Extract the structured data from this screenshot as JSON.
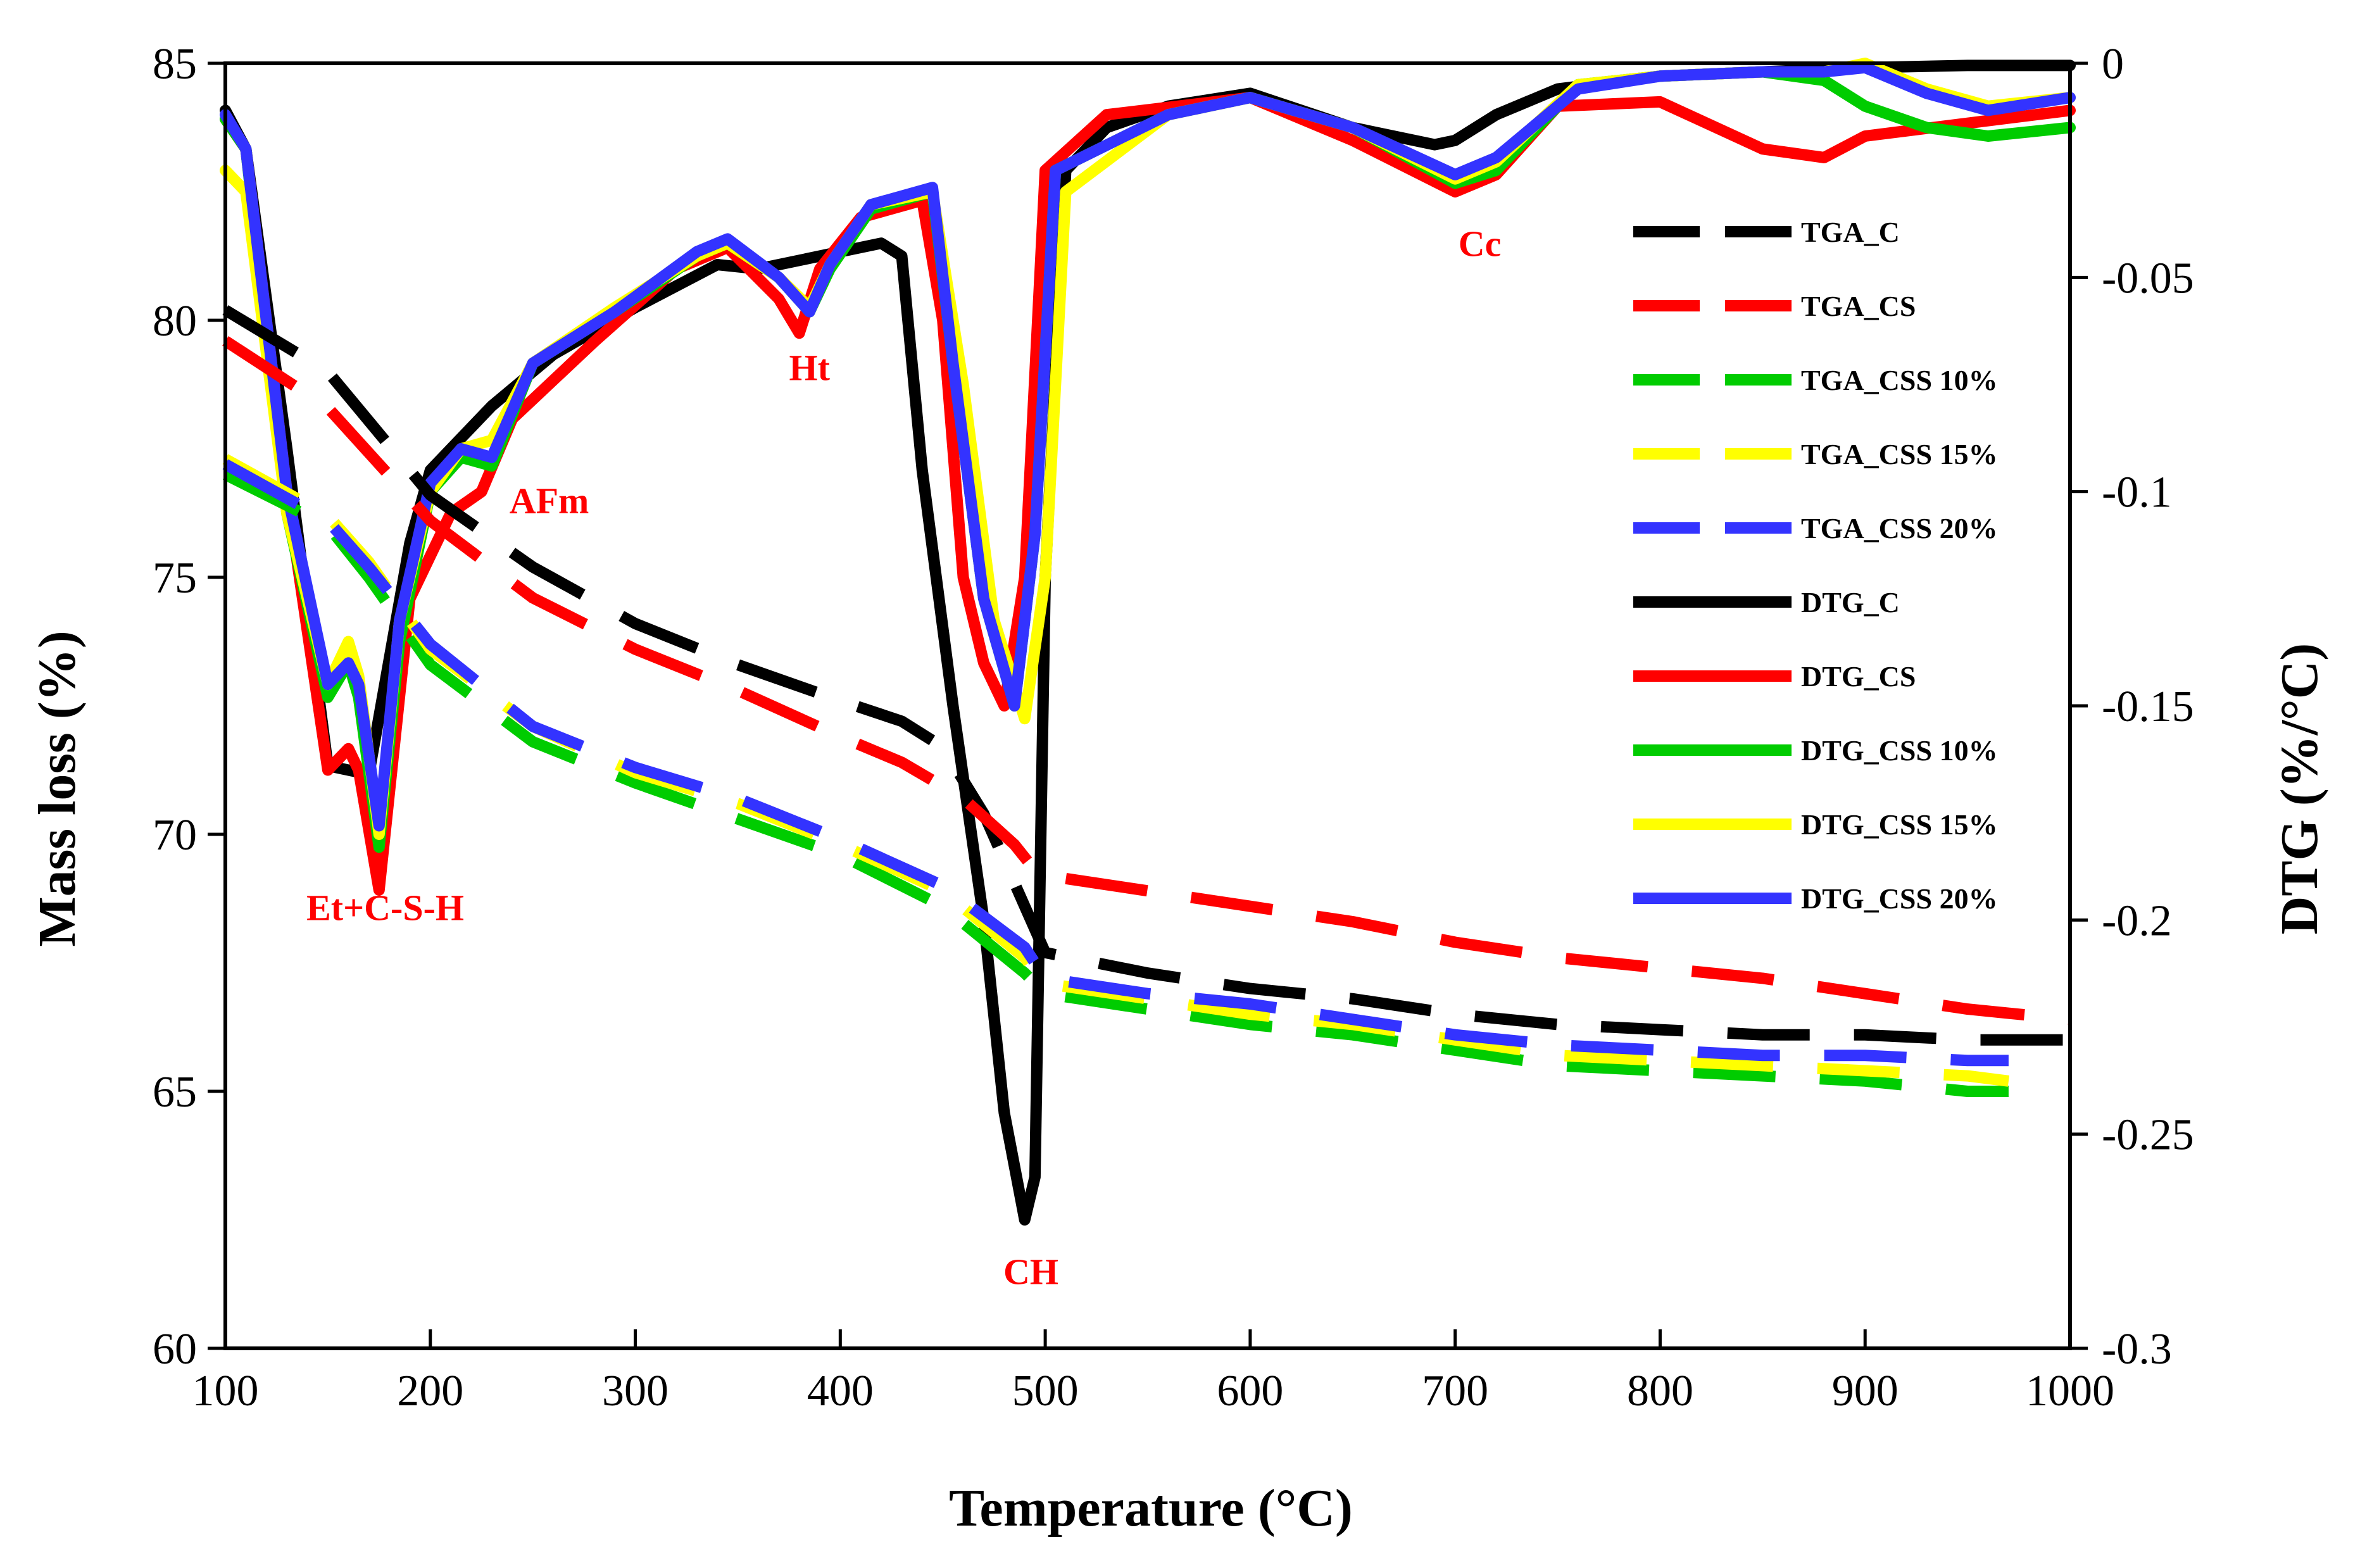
{
  "chart_data": {
    "type": "line",
    "title": "",
    "xlabel": "Temperature (°C)",
    "ylabel": "Mass loss (%)",
    "y2label": "DTG (%/°C)",
    "xlim": [
      100,
      1000
    ],
    "ylim": [
      60,
      85
    ],
    "y2lim": [
      -0.3,
      0
    ],
    "xticks": [
      100,
      200,
      300,
      400,
      500,
      600,
      700,
      800,
      900,
      1000
    ],
    "yticks": [
      60,
      65,
      70,
      75,
      80,
      85
    ],
    "y2ticks": [
      -0.3,
      -0.25,
      -0.2,
      -0.15,
      -0.1,
      -0.05,
      0
    ],
    "y2tick_labels": [
      "-0.3",
      "-0.25",
      "-0.2",
      "-0.15",
      "-0.1",
      "-0.05",
      "0"
    ],
    "grid": false,
    "legend_position": "right",
    "series": [
      {
        "name": "TGA_C",
        "axis": "left",
        "style": "dashed",
        "color": "#000000",
        "x": [
          100,
          150,
          200,
          250,
          300,
          350,
          400,
          430,
          450,
          470,
          490,
          500,
          550,
          600,
          650,
          700,
          750,
          800,
          850,
          900,
          950,
          1000
        ],
        "y": [
          80.2,
          79.0,
          76.6,
          75.2,
          74.1,
          73.3,
          72.6,
          72.2,
          71.7,
          70.4,
          68.6,
          67.7,
          67.3,
          67.0,
          66.8,
          66.5,
          66.3,
          66.2,
          66.1,
          66.1,
          66.0,
          66.0
        ]
      },
      {
        "name": "TGA_CS",
        "axis": "left",
        "style": "dashed",
        "color": "#ff0000",
        "x": [
          100,
          150,
          200,
          250,
          300,
          350,
          400,
          430,
          460,
          485,
          495,
          500,
          550,
          600,
          650,
          700,
          750,
          800,
          850,
          900,
          950,
          1000
        ],
        "y": [
          79.6,
          78.3,
          76.1,
          74.6,
          73.6,
          72.8,
          71.9,
          71.4,
          70.7,
          69.8,
          69.3,
          69.2,
          68.9,
          68.6,
          68.3,
          67.9,
          67.6,
          67.4,
          67.2,
          66.9,
          66.6,
          66.4
        ]
      },
      {
        "name": "TGA_CSS 10%",
        "axis": "left",
        "style": "dashed",
        "color": "#00cc00",
        "x": [
          100,
          150,
          170,
          200,
          250,
          300,
          350,
          400,
          450,
          490,
          500,
          550,
          600,
          650,
          700,
          750,
          800,
          850,
          900,
          950,
          970
        ],
        "y": [
          77.0,
          76.0,
          75.0,
          73.3,
          71.8,
          71.0,
          70.3,
          69.6,
          68.6,
          67.3,
          66.9,
          66.6,
          66.3,
          66.1,
          65.8,
          65.5,
          65.4,
          65.3,
          65.2,
          65.0,
          65.0
        ]
      },
      {
        "name": "TGA_CSS 15%",
        "axis": "left",
        "style": "dashed",
        "color": "#ffff00",
        "x": [
          100,
          150,
          170,
          200,
          250,
          300,
          350,
          400,
          450,
          490,
          500,
          550,
          600,
          650,
          700,
          750,
          800,
          850,
          900,
          950,
          970
        ],
        "y": [
          77.3,
          76.2,
          75.3,
          73.6,
          72.1,
          71.2,
          70.6,
          69.8,
          68.9,
          67.6,
          67.1,
          66.8,
          66.5,
          66.3,
          66.0,
          65.7,
          65.6,
          65.5,
          65.4,
          65.3,
          65.2
        ]
      },
      {
        "name": "TGA_CSS 20%",
        "axis": "left",
        "style": "dashed",
        "color": "#3333ff",
        "x": [
          100,
          150,
          170,
          200,
          250,
          300,
          350,
          400,
          450,
          490,
          500,
          550,
          600,
          650,
          700,
          750,
          800,
          850,
          900,
          950,
          970
        ],
        "y": [
          77.2,
          76.1,
          75.2,
          73.7,
          72.1,
          71.3,
          70.7,
          69.9,
          69.0,
          67.8,
          67.2,
          66.9,
          66.7,
          66.4,
          66.1,
          65.9,
          65.8,
          65.7,
          65.7,
          65.6,
          65.6
        ]
      },
      {
        "name": "DTG_C",
        "axis": "right",
        "style": "solid",
        "color": "#000000",
        "x": [
          100,
          110,
          130,
          150,
          170,
          190,
          200,
          230,
          260,
          300,
          340,
          360,
          380,
          400,
          420,
          430,
          440,
          455,
          470,
          480,
          490,
          495,
          500,
          510,
          530,
          560,
          600,
          650,
          690,
          700,
          720,
          750,
          800,
          850,
          900,
          950,
          1000
        ],
        "y": [
          -0.011,
          -0.02,
          -0.09,
          -0.164,
          -0.166,
          -0.112,
          -0.095,
          -0.08,
          -0.068,
          -0.057,
          -0.047,
          -0.048,
          -0.046,
          -0.044,
          -0.042,
          -0.045,
          -0.095,
          -0.15,
          -0.2,
          -0.245,
          -0.27,
          -0.26,
          -0.12,
          -0.025,
          -0.015,
          -0.01,
          -0.007,
          -0.015,
          -0.019,
          -0.018,
          -0.012,
          -0.006,
          -0.003,
          -0.002,
          -0.001,
          -0.0005,
          -0.0005
        ]
      },
      {
        "name": "DTG_CS",
        "axis": "right",
        "style": "solid",
        "color": "#ff0000",
        "x": [
          100,
          110,
          130,
          150,
          160,
          165,
          175,
          190,
          210,
          225,
          240,
          280,
          320,
          345,
          370,
          380,
          390,
          410,
          440,
          450,
          460,
          470,
          480,
          490,
          500,
          530,
          600,
          650,
          700,
          720,
          750,
          800,
          850,
          880,
          900,
          950,
          1000
        ],
        "y": [
          -0.013,
          -0.02,
          -0.1,
          -0.165,
          -0.16,
          -0.165,
          -0.193,
          -0.125,
          -0.105,
          -0.1,
          -0.083,
          -0.065,
          -0.048,
          -0.043,
          -0.055,
          -0.063,
          -0.048,
          -0.036,
          -0.032,
          -0.06,
          -0.12,
          -0.14,
          -0.15,
          -0.12,
          -0.025,
          -0.012,
          -0.008,
          -0.018,
          -0.03,
          -0.026,
          -0.01,
          -0.009,
          -0.02,
          -0.022,
          -0.017,
          -0.014,
          -0.011
        ]
      },
      {
        "name": "DTG_CSS 10%",
        "axis": "right",
        "style": "solid",
        "color": "#00cc00",
        "x": [
          100,
          110,
          130,
          150,
          160,
          165,
          175,
          185,
          200,
          215,
          230,
          250,
          290,
          330,
          345,
          370,
          385,
          395,
          415,
          445,
          455,
          470,
          485,
          495,
          505,
          560,
          600,
          650,
          700,
          720,
          760,
          800,
          850,
          880,
          900,
          930,
          960,
          1000
        ],
        "y": [
          -0.013,
          -0.02,
          -0.105,
          -0.148,
          -0.14,
          -0.148,
          -0.183,
          -0.135,
          -0.1,
          -0.092,
          -0.094,
          -0.07,
          -0.058,
          -0.045,
          -0.042,
          -0.05,
          -0.058,
          -0.048,
          -0.034,
          -0.03,
          -0.07,
          -0.125,
          -0.15,
          -0.11,
          -0.025,
          -0.012,
          -0.008,
          -0.015,
          -0.028,
          -0.025,
          -0.005,
          -0.003,
          -0.002,
          -0.004,
          -0.01,
          -0.015,
          -0.017,
          -0.015
        ]
      },
      {
        "name": "DTG_CSS 15%",
        "axis": "right",
        "style": "solid",
        "color": "#ffff00",
        "x": [
          100,
          110,
          130,
          150,
          160,
          165,
          175,
          185,
          200,
          215,
          230,
          250,
          290,
          330,
          345,
          370,
          385,
          395,
          415,
          445,
          460,
          475,
          490,
          500,
          510,
          560,
          600,
          650,
          700,
          720,
          760,
          800,
          850,
          880,
          900,
          930,
          960,
          1000
        ],
        "y": [
          -0.025,
          -0.03,
          -0.105,
          -0.145,
          -0.135,
          -0.143,
          -0.18,
          -0.13,
          -0.1,
          -0.09,
          -0.088,
          -0.07,
          -0.057,
          -0.045,
          -0.042,
          -0.05,
          -0.057,
          -0.047,
          -0.033,
          -0.03,
          -0.075,
          -0.13,
          -0.153,
          -0.12,
          -0.03,
          -0.012,
          -0.008,
          -0.015,
          -0.027,
          -0.023,
          -0.005,
          -0.003,
          -0.002,
          -0.002,
          0.0,
          -0.006,
          -0.01,
          -0.008
        ]
      },
      {
        "name": "DTG_CSS 20%",
        "axis": "right",
        "style": "solid",
        "color": "#3333ff",
        "x": [
          100,
          110,
          130,
          150,
          160,
          165,
          175,
          185,
          200,
          215,
          230,
          250,
          290,
          330,
          345,
          370,
          385,
          395,
          415,
          445,
          455,
          470,
          485,
          495,
          505,
          560,
          600,
          650,
          700,
          720,
          760,
          800,
          850,
          880,
          900,
          930,
          960,
          1000
        ],
        "y": [
          -0.012,
          -0.02,
          -0.1,
          -0.145,
          -0.14,
          -0.145,
          -0.178,
          -0.13,
          -0.098,
          -0.09,
          -0.092,
          -0.07,
          -0.058,
          -0.044,
          -0.041,
          -0.05,
          -0.058,
          -0.047,
          -0.033,
          -0.029,
          -0.07,
          -0.125,
          -0.15,
          -0.11,
          -0.025,
          -0.012,
          -0.008,
          -0.015,
          -0.026,
          -0.022,
          -0.006,
          -0.003,
          -0.002,
          -0.002,
          -0.001,
          -0.007,
          -0.011,
          -0.008
        ]
      }
    ],
    "annotations": [
      {
        "text": "Et+C-S-H",
        "x": 178,
        "axis": "right",
        "y": -0.2,
        "color": "#ff0000"
      },
      {
        "text": "AFm",
        "x": 258,
        "axis": "right",
        "y": -0.105,
        "color": "#ff0000"
      },
      {
        "text": "Ht",
        "x": 385,
        "axis": "right",
        "y": -0.074,
        "color": "#ff0000"
      },
      {
        "text": "CH",
        "x": 493,
        "axis": "right",
        "y": -0.285,
        "color": "#ff0000"
      },
      {
        "text": "Cc",
        "x": 712,
        "axis": "right",
        "y": -0.045,
        "color": "#ff0000"
      }
    ]
  }
}
